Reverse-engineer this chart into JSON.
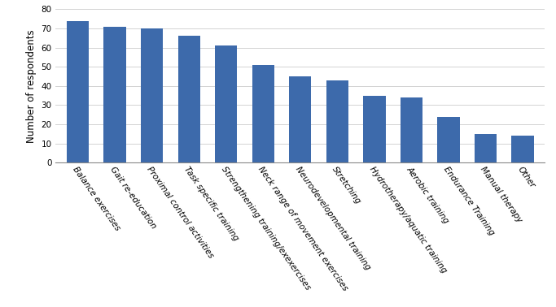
{
  "categories": [
    "Balance exercises",
    "Gait re-education",
    "Proximal control activities",
    "Task specific training",
    "Strengthening training/exexercises",
    "Neck range of movement exercises",
    "Neurodevelopmental training",
    "Stretching",
    "Hydrotherapy/aquatic training",
    "Aerobic training",
    "Endurance Training",
    "Manual therapy",
    "Other"
  ],
  "values": [
    74,
    71,
    70,
    66,
    61,
    51,
    45,
    43,
    35,
    34,
    24,
    15,
    14
  ],
  "bar_color": "#3d6aab",
  "ylabel": "Number of respondents",
  "ylim": [
    0,
    80
  ],
  "yticks": [
    0,
    10,
    20,
    30,
    40,
    50,
    60,
    70,
    80
  ],
  "bar_width": 0.6,
  "tick_fontsize": 7.5,
  "label_fontsize": 8.5,
  "xlabel_rotation": -55
}
